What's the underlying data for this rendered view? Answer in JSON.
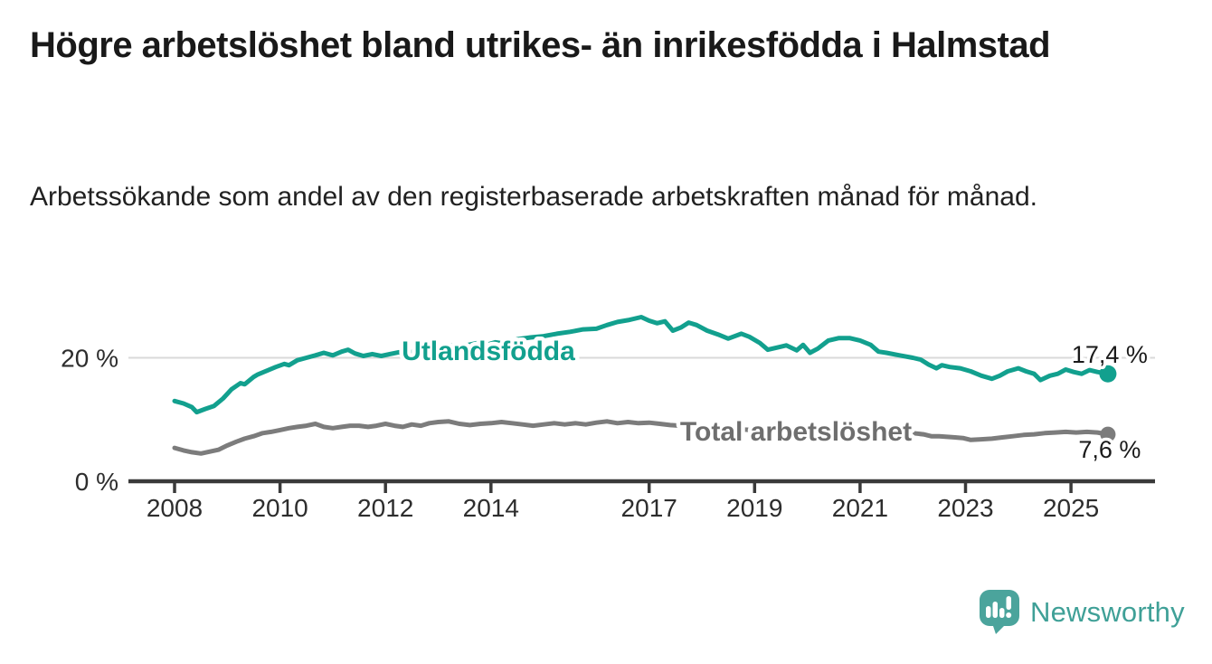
{
  "header": {
    "title": "Högre arbetslöshet bland utrikes- än inrikesfödda i Halmstad",
    "subtitle": "Arbetssökande som andel av den registerbaserade arbetskraften månad för månad."
  },
  "branding": {
    "logo_text": "Newsworthy",
    "logo_icon": "speech-bubble-bar-chart-icon",
    "logo_icon_color": "#4BA49C",
    "logo_text_color": "#3FA097"
  },
  "palette": {
    "series_teal": "#12A08E",
    "series_gray": "#7C7C7C",
    "axis_dark": "#3A3A3A",
    "gridline": "#D9D9D9",
    "end_label_color": "#1A1A1A",
    "tick_label_color": "#2D2D2D"
  },
  "chart_data": {
    "type": "line",
    "unit": "%",
    "title": "",
    "xlabel": "",
    "ylabel": "",
    "xlim": [
      2007.6,
      2026.2
    ],
    "ylim": [
      0,
      28.5
    ],
    "grid": "horizontal line at 20 % only",
    "legend_position": "inline labels on lines, value labels at line ends",
    "x_ticks": [
      "2008",
      "2010",
      "2012",
      "2014",
      "2017",
      "2019",
      "2021",
      "2023",
      "2025"
    ],
    "x_tick_years": [
      2008,
      2010,
      2012,
      2014,
      2017,
      2019,
      2021,
      2023,
      2025
    ],
    "y_ticks": [
      {
        "value": 0,
        "label": "0 %"
      },
      {
        "value": 20,
        "label": "20 %"
      }
    ],
    "series": [
      {
        "name": "Utlandsfödda",
        "color": "#12A08E",
        "label_color": "#12A08E",
        "end_label": "17,4 %",
        "end_value": 17.4,
        "end_label_position": "above",
        "points": [
          [
            2008.0,
            13.0
          ],
          [
            2008.17,
            12.6
          ],
          [
            2008.33,
            12.0
          ],
          [
            2008.42,
            11.2
          ],
          [
            2008.58,
            11.7
          ],
          [
            2008.75,
            12.2
          ],
          [
            2008.92,
            13.4
          ],
          [
            2009.08,
            14.9
          ],
          [
            2009.25,
            15.9
          ],
          [
            2009.33,
            15.7
          ],
          [
            2009.5,
            16.9
          ],
          [
            2009.58,
            17.3
          ],
          [
            2009.75,
            17.9
          ],
          [
            2009.92,
            18.5
          ],
          [
            2010.08,
            19.0
          ],
          [
            2010.17,
            18.8
          ],
          [
            2010.33,
            19.6
          ],
          [
            2010.5,
            20.0
          ],
          [
            2010.67,
            20.4
          ],
          [
            2010.83,
            20.8
          ],
          [
            2011.0,
            20.4
          ],
          [
            2011.17,
            21.0
          ],
          [
            2011.29,
            21.3
          ],
          [
            2011.42,
            20.7
          ],
          [
            2011.58,
            20.3
          ],
          [
            2011.75,
            20.6
          ],
          [
            2011.92,
            20.3
          ],
          [
            2012.08,
            20.6
          ],
          [
            2012.25,
            20.9
          ],
          [
            2012.42,
            20.4
          ],
          [
            2012.58,
            21.4
          ],
          [
            2012.75,
            21.1
          ],
          [
            2012.92,
            21.8
          ],
          [
            2013.08,
            21.5
          ],
          [
            2013.25,
            22.0
          ],
          [
            2013.42,
            21.7
          ],
          [
            2013.58,
            22.1
          ],
          [
            2013.75,
            22.4
          ],
          [
            2013.92,
            22.1
          ],
          [
            2014.08,
            22.5
          ],
          [
            2014.25,
            22.3
          ],
          [
            2014.5,
            23.0
          ],
          [
            2014.75,
            23.3
          ],
          [
            2015.0,
            23.5
          ],
          [
            2015.25,
            23.9
          ],
          [
            2015.5,
            24.2
          ],
          [
            2015.75,
            24.6
          ],
          [
            2016.0,
            24.7
          ],
          [
            2016.2,
            25.3
          ],
          [
            2016.4,
            25.8
          ],
          [
            2016.6,
            26.1
          ],
          [
            2016.85,
            26.6
          ],
          [
            2017.0,
            26.0
          ],
          [
            2017.15,
            25.6
          ],
          [
            2017.3,
            25.9
          ],
          [
            2017.45,
            24.4
          ],
          [
            2017.6,
            24.9
          ],
          [
            2017.75,
            25.7
          ],
          [
            2017.9,
            25.3
          ],
          [
            2018.1,
            24.4
          ],
          [
            2018.3,
            23.8
          ],
          [
            2018.5,
            23.1
          ],
          [
            2018.75,
            23.9
          ],
          [
            2018.9,
            23.4
          ],
          [
            2019.1,
            22.4
          ],
          [
            2019.25,
            21.3
          ],
          [
            2019.4,
            21.6
          ],
          [
            2019.6,
            22.0
          ],
          [
            2019.8,
            21.2
          ],
          [
            2019.92,
            22.1
          ],
          [
            2020.05,
            20.8
          ],
          [
            2020.2,
            21.5
          ],
          [
            2020.4,
            22.8
          ],
          [
            2020.6,
            23.2
          ],
          [
            2020.8,
            23.2
          ],
          [
            2021.0,
            22.8
          ],
          [
            2021.2,
            22.1
          ],
          [
            2021.35,
            21.0
          ],
          [
            2021.5,
            20.8
          ],
          [
            2021.75,
            20.4
          ],
          [
            2022.0,
            20.0
          ],
          [
            2022.15,
            19.7
          ],
          [
            2022.3,
            18.9
          ],
          [
            2022.45,
            18.3
          ],
          [
            2022.55,
            18.8
          ],
          [
            2022.7,
            18.5
          ],
          [
            2022.9,
            18.3
          ],
          [
            2023.1,
            17.8
          ],
          [
            2023.3,
            17.1
          ],
          [
            2023.5,
            16.6
          ],
          [
            2023.65,
            17.1
          ],
          [
            2023.8,
            17.8
          ],
          [
            2024.0,
            18.3
          ],
          [
            2024.15,
            17.8
          ],
          [
            2024.3,
            17.4
          ],
          [
            2024.42,
            16.4
          ],
          [
            2024.6,
            17.1
          ],
          [
            2024.75,
            17.4
          ],
          [
            2024.9,
            18.1
          ],
          [
            2025.05,
            17.7
          ],
          [
            2025.2,
            17.4
          ],
          [
            2025.35,
            18.0
          ],
          [
            2025.5,
            17.7
          ],
          [
            2025.7,
            17.4
          ]
        ]
      },
      {
        "name": "Total arbetslöshet",
        "color": "#7C7C7C",
        "label_color": "#6E6E6E",
        "end_label": "7,6 %",
        "end_value": 7.6,
        "end_label_position": "below",
        "points": [
          [
            2008.0,
            5.4
          ],
          [
            2008.17,
            5.0
          ],
          [
            2008.33,
            4.7
          ],
          [
            2008.5,
            4.5
          ],
          [
            2008.67,
            4.8
          ],
          [
            2008.83,
            5.1
          ],
          [
            2009.0,
            5.8
          ],
          [
            2009.17,
            6.4
          ],
          [
            2009.33,
            6.9
          ],
          [
            2009.5,
            7.3
          ],
          [
            2009.67,
            7.8
          ],
          [
            2009.83,
            8.0
          ],
          [
            2010.0,
            8.3
          ],
          [
            2010.17,
            8.6
          ],
          [
            2010.33,
            8.8
          ],
          [
            2010.5,
            9.0
          ],
          [
            2010.67,
            9.3
          ],
          [
            2010.83,
            8.8
          ],
          [
            2011.0,
            8.6
          ],
          [
            2011.17,
            8.8
          ],
          [
            2011.33,
            9.0
          ],
          [
            2011.5,
            9.0
          ],
          [
            2011.67,
            8.8
          ],
          [
            2011.83,
            9.0
          ],
          [
            2012.0,
            9.3
          ],
          [
            2012.17,
            9.0
          ],
          [
            2012.33,
            8.8
          ],
          [
            2012.5,
            9.2
          ],
          [
            2012.67,
            9.0
          ],
          [
            2012.83,
            9.4
          ],
          [
            2013.0,
            9.6
          ],
          [
            2013.2,
            9.7
          ],
          [
            2013.4,
            9.3
          ],
          [
            2013.6,
            9.1
          ],
          [
            2013.8,
            9.3
          ],
          [
            2014.0,
            9.4
          ],
          [
            2014.2,
            9.6
          ],
          [
            2014.4,
            9.4
          ],
          [
            2014.6,
            9.2
          ],
          [
            2014.8,
            9.0
          ],
          [
            2015.0,
            9.2
          ],
          [
            2015.2,
            9.4
          ],
          [
            2015.4,
            9.2
          ],
          [
            2015.6,
            9.4
          ],
          [
            2015.8,
            9.2
          ],
          [
            2016.0,
            9.5
          ],
          [
            2016.2,
            9.7
          ],
          [
            2016.4,
            9.4
          ],
          [
            2016.6,
            9.6
          ],
          [
            2016.8,
            9.4
          ],
          [
            2017.0,
            9.5
          ],
          [
            2017.2,
            9.3
          ],
          [
            2017.4,
            9.1
          ],
          [
            2017.6,
            9.0
          ],
          [
            2017.8,
            8.9
          ],
          [
            2018.0,
            8.8
          ],
          [
            2018.25,
            8.6
          ],
          [
            2018.5,
            8.5
          ],
          [
            2018.75,
            8.4
          ],
          [
            2019.0,
            8.3
          ],
          [
            2019.25,
            8.2
          ],
          [
            2019.5,
            8.1
          ],
          [
            2019.75,
            8.0
          ],
          [
            2020.0,
            8.1
          ],
          [
            2020.25,
            8.4
          ],
          [
            2020.5,
            8.6
          ],
          [
            2020.75,
            8.5
          ],
          [
            2021.0,
            8.4
          ],
          [
            2021.25,
            8.2
          ],
          [
            2021.5,
            8.0
          ],
          [
            2021.75,
            7.9
          ],
          [
            2022.0,
            7.8
          ],
          [
            2022.2,
            7.6
          ],
          [
            2022.35,
            7.3
          ],
          [
            2022.5,
            7.3
          ],
          [
            2022.65,
            7.2
          ],
          [
            2022.8,
            7.1
          ],
          [
            2022.95,
            7.0
          ],
          [
            2023.1,
            6.7
          ],
          [
            2023.3,
            6.8
          ],
          [
            2023.5,
            6.9
          ],
          [
            2023.7,
            7.1
          ],
          [
            2023.9,
            7.3
          ],
          [
            2024.1,
            7.5
          ],
          [
            2024.3,
            7.6
          ],
          [
            2024.5,
            7.8
          ],
          [
            2024.7,
            7.9
          ],
          [
            2024.9,
            8.0
          ],
          [
            2025.1,
            7.9
          ],
          [
            2025.3,
            8.0
          ],
          [
            2025.5,
            7.9
          ],
          [
            2025.7,
            7.6
          ]
        ]
      }
    ]
  }
}
